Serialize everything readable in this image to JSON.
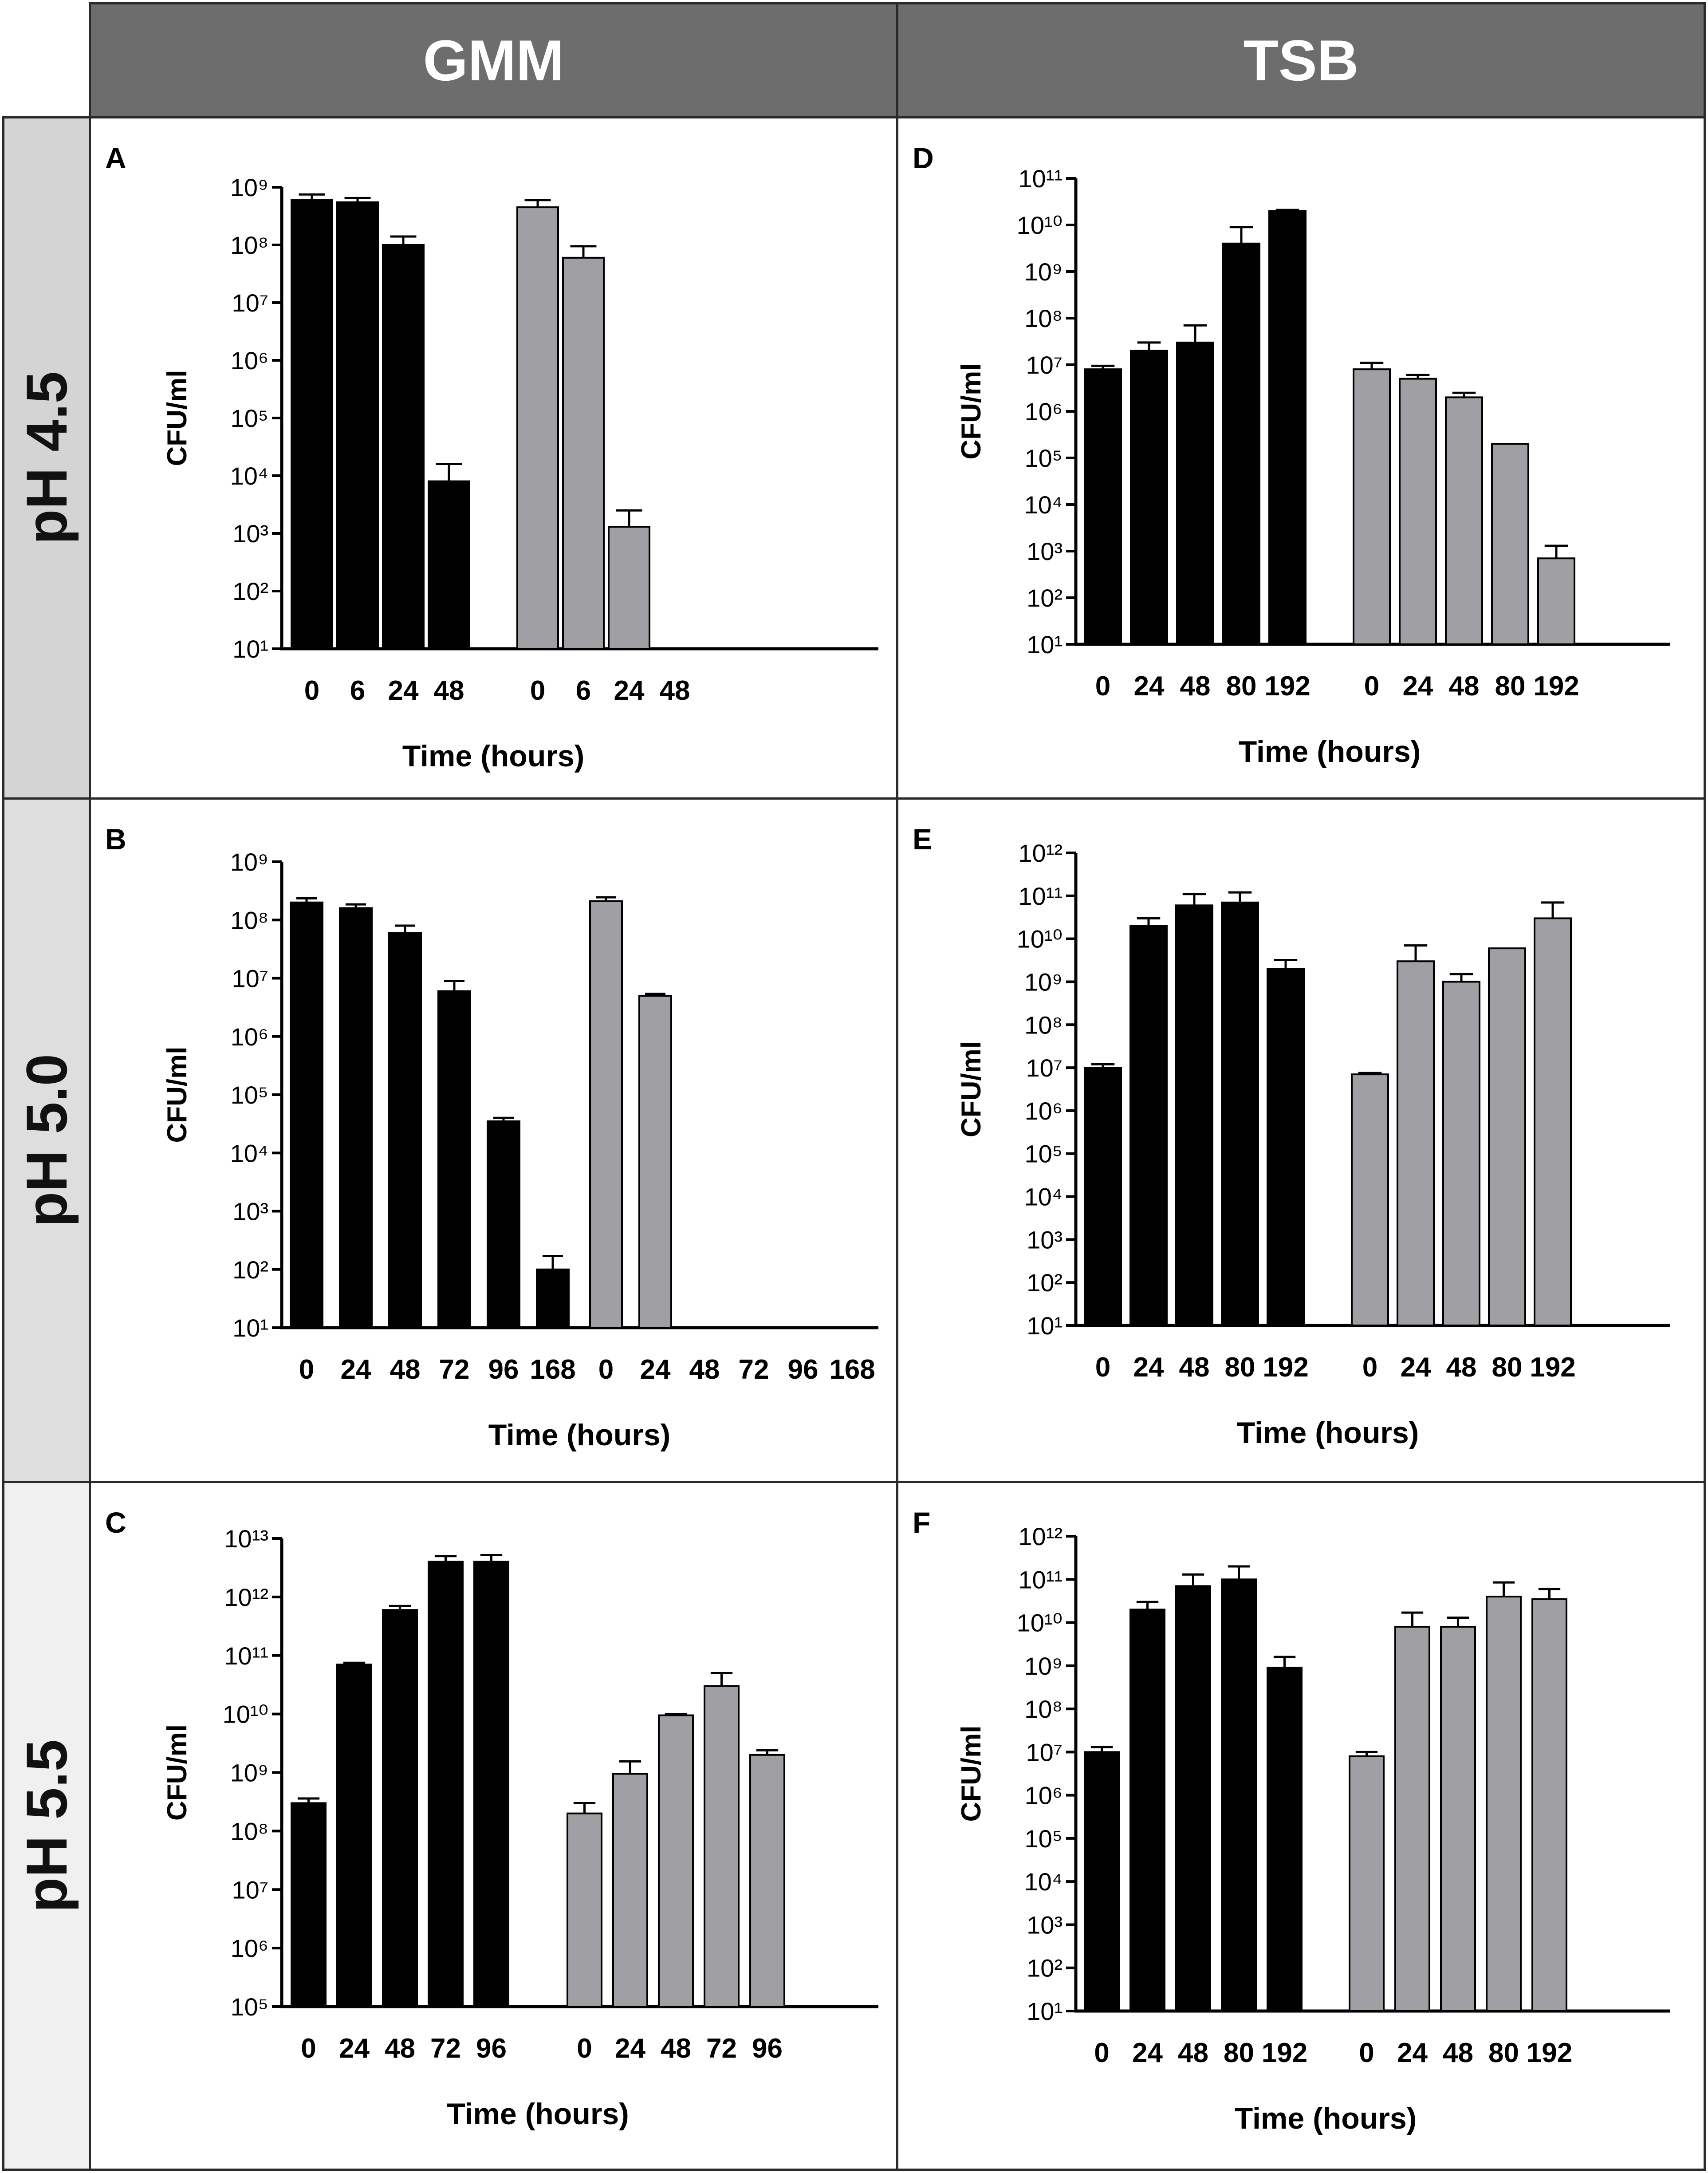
{
  "headers": {
    "col1": "GMM",
    "col2": "TSB"
  },
  "rows": {
    "row1": "pH 4.5",
    "row2": "pH 5.0",
    "row3": "pH 5.5"
  },
  "colors": {
    "series1": "#000000",
    "series2": "#a0a0a4",
    "rowLabelBg1": "#d4d4d4",
    "rowLabelBg2": "#dedede",
    "rowLabelBg3": "#f0f0f0"
  },
  "chart_data": [
    {
      "panel": "A",
      "type": "bar",
      "title": "",
      "xlabel": "Time (hours)",
      "ylabel": "CFU/ml",
      "yscale": "log",
      "ylim_exp": [
        1,
        9
      ],
      "groups": [
        {
          "color": "#000000",
          "categories": [
            "0",
            "6",
            "24",
            "48"
          ],
          "values": [
            600000000,
            550000000,
            100000000,
            8000
          ],
          "errors": [
            150000000,
            100000000,
            40000000,
            8000
          ]
        },
        {
          "color": "#a0a0a4",
          "categories": [
            "0",
            "6",
            "24",
            "48"
          ],
          "values": [
            450000000,
            60000000,
            1300,
            null
          ],
          "errors": [
            150000000,
            35000000,
            1200,
            null
          ]
        }
      ]
    },
    {
      "panel": "B",
      "type": "bar",
      "title": "",
      "xlabel": "Time (hours)",
      "ylabel": "CFU/ml",
      "yscale": "log",
      "ylim_exp": [
        1,
        9
      ],
      "groups": [
        {
          "color": "#000000",
          "categories": [
            "0",
            "24",
            "48",
            "72",
            "96",
            "168"
          ],
          "values": [
            200000000,
            160000000,
            60000000,
            6000000,
            35000,
            100
          ],
          "errors": [
            35000000,
            25000000,
            20000000,
            3000000,
            5000,
            70
          ]
        },
        {
          "color": "#a0a0a4",
          "categories": [
            "0",
            "24",
            "48",
            "72",
            "96",
            "168"
          ],
          "values": [
            210000000,
            5000000,
            null,
            null,
            null,
            null
          ],
          "errors": [
            35000000,
            400000,
            null,
            null,
            null,
            null
          ]
        }
      ]
    },
    {
      "panel": "C",
      "type": "bar",
      "title": "",
      "xlabel": "Time (hours)",
      "ylabel": "CFU/ml",
      "yscale": "log",
      "ylim_exp": [
        5,
        13
      ],
      "groups": [
        {
          "color": "#000000",
          "categories": [
            "0",
            "24",
            "48",
            "72",
            "96"
          ],
          "values": [
            300000000,
            70000000000,
            600000000000,
            4000000000000,
            4000000000000
          ],
          "errors": [
            60000000,
            5000000000,
            100000000000,
            1000000000000,
            1200000000000
          ]
        },
        {
          "color": "#a0a0a4",
          "categories": [
            "0",
            "24",
            "48",
            "72",
            "96"
          ],
          "values": [
            200000000,
            950000000,
            9500000000,
            30000000000,
            2000000000
          ],
          "errors": [
            100000000,
            600000000,
            500000000,
            20000000000,
            400000000
          ]
        }
      ]
    },
    {
      "panel": "D",
      "type": "bar",
      "title": "",
      "xlabel": "Time (hours)",
      "ylabel": "CFU/ml",
      "yscale": "log",
      "ylim_exp": [
        1,
        11
      ],
      "groups": [
        {
          "color": "#000000",
          "categories": [
            "0",
            "24",
            "48",
            "80",
            "192"
          ],
          "values": [
            8000000,
            20000000,
            30000000,
            4000000000,
            20000000000
          ],
          "errors": [
            1500000,
            10000000,
            40000000,
            5000000000,
            1000000000
          ]
        },
        {
          "color": "#a0a0a4",
          "categories": [
            "0",
            "24",
            "48",
            "80",
            "192"
          ],
          "values": [
            8000000,
            5000000,
            2000000,
            200000,
            700
          ],
          "errors": [
            3000000,
            1000000,
            500000,
            null,
            600
          ]
        }
      ]
    },
    {
      "panel": "E",
      "type": "bar",
      "title": "",
      "xlabel": "Time (hours)",
      "ylabel": "CFU/ml",
      "yscale": "log",
      "ylim_exp": [
        1,
        12
      ],
      "groups": [
        {
          "color": "#000000",
          "categories": [
            "0",
            "24",
            "48",
            "80",
            "192"
          ],
          "values": [
            10000000,
            20000000000,
            60000000000,
            70000000000,
            2000000000
          ],
          "errors": [
            2000000,
            10000000000,
            50000000000,
            50000000000,
            1200000000
          ]
        },
        {
          "color": "#a0a0a4",
          "categories": [
            "0",
            "24",
            "48",
            "80",
            "192"
          ],
          "values": [
            7000000,
            3000000000,
            1000000000,
            6000000000,
            30000000000
          ],
          "errors": [
            500000,
            4000000000,
            500000000,
            null,
            40000000000
          ]
        }
      ]
    },
    {
      "panel": "F",
      "type": "bar",
      "title": "",
      "xlabel": "Time (hours)",
      "ylabel": "CFU/ml",
      "yscale": "log",
      "ylim_exp": [
        1,
        12
      ],
      "groups": [
        {
          "color": "#000000",
          "categories": [
            "0",
            "24",
            "48",
            "80",
            "192"
          ],
          "values": [
            10000000,
            20000000000,
            70000000000,
            100000000000,
            900000000
          ],
          "errors": [
            3000000,
            10000000000,
            60000000000,
            100000000000,
            700000000
          ]
        },
        {
          "color": "#a0a0a4",
          "categories": [
            "0",
            "24",
            "48",
            "80",
            "192"
          ],
          "values": [
            8000000,
            8000000000,
            8000000000,
            40000000000,
            35000000000
          ],
          "errors": [
            2000000,
            9000000000,
            5000000000,
            45000000000,
            25000000000
          ]
        }
      ]
    }
  ]
}
